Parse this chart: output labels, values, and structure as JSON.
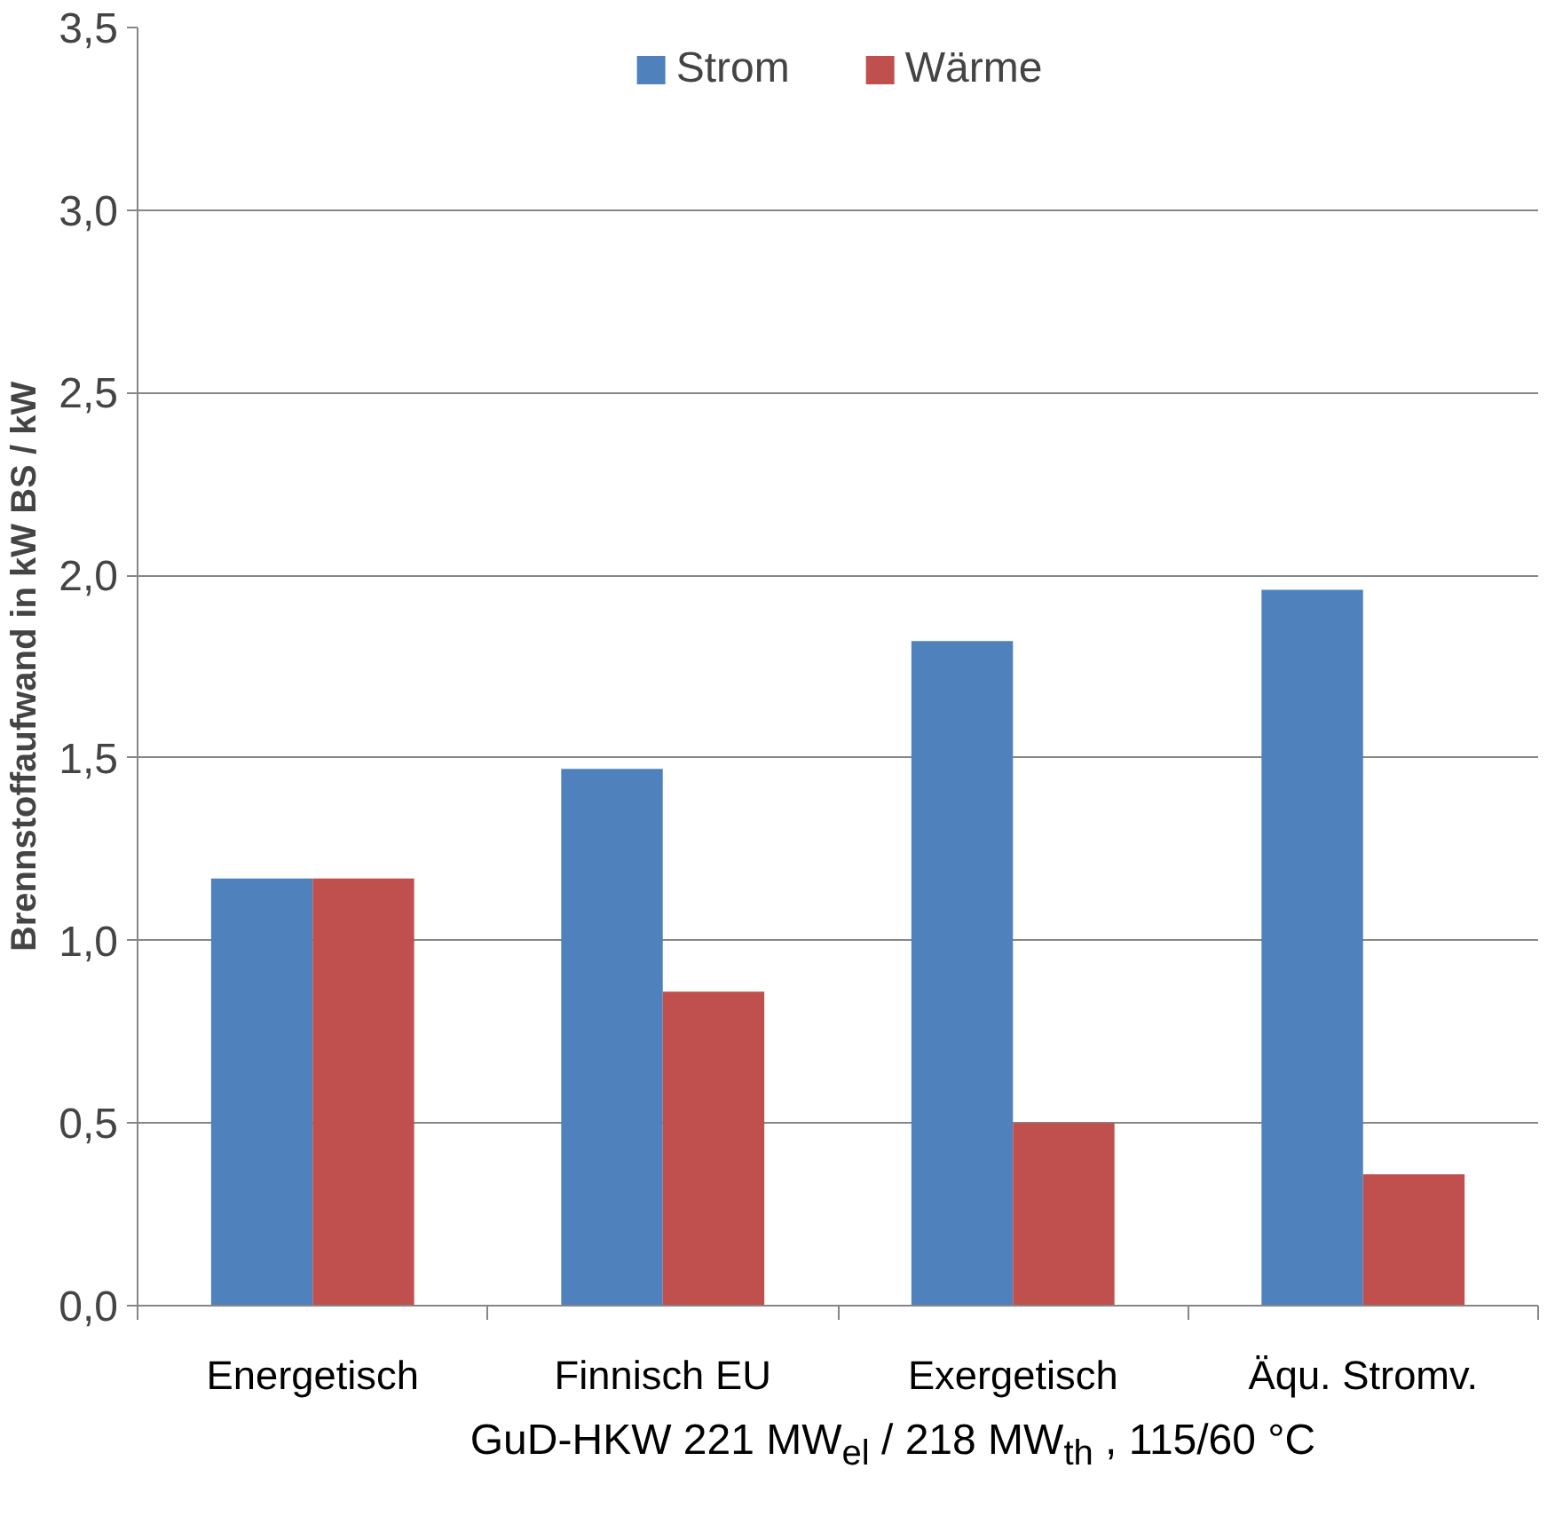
{
  "chart_data": {
    "type": "bar",
    "ylabel": "Brennstoffaufwand in kW BS / kW",
    "xlabel": "GuD-HKW 221 MW$_{el}$ / 218 MW$_{th}$ , 115/60 °C",
    "categories": [
      "Energetisch",
      "Finnisch EU",
      "Exergetisch",
      "Äqu. Stromv."
    ],
    "series": [
      {
        "name": "Strom",
        "color": "#4f81bd",
        "values": [
          1.17,
          1.47,
          1.82,
          1.96
        ]
      },
      {
        "name": "Wärme",
        "color": "#c0504d",
        "values": [
          1.17,
          0.86,
          0.5,
          0.36
        ]
      }
    ],
    "ylim": [
      0,
      3.5
    ],
    "yticks": [
      {
        "value": 0,
        "label": "0,0"
      },
      {
        "value": 0.5,
        "label": "0,5"
      },
      {
        "value": 1.0,
        "label": "1,0"
      },
      {
        "value": 1.5,
        "label": "1,5"
      },
      {
        "value": 2.0,
        "label": "2,0"
      },
      {
        "value": 2.5,
        "label": "2,5"
      },
      {
        "value": 3.0,
        "label": "3,0"
      },
      {
        "value": 3.5,
        "label": "3,5"
      }
    ],
    "grid": "y",
    "legend": "top"
  }
}
